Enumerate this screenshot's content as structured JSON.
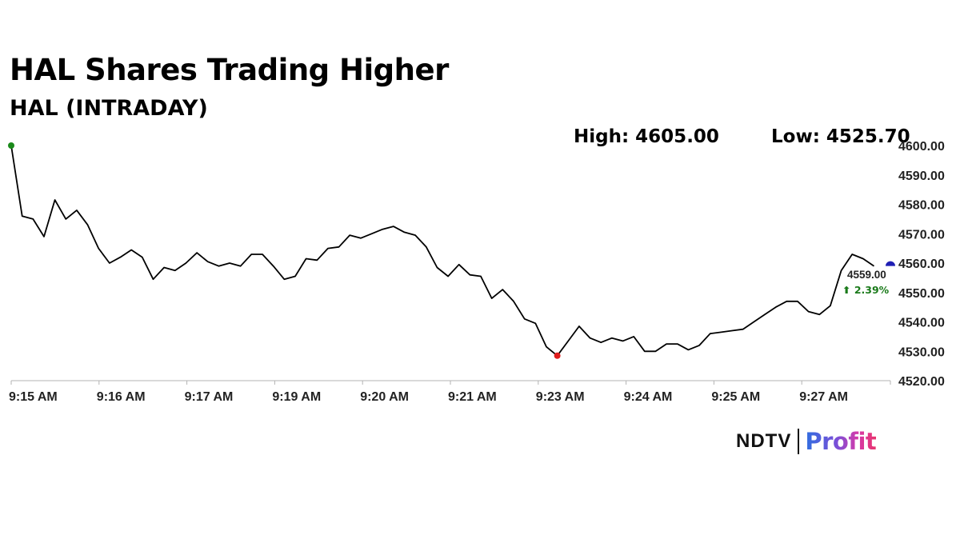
{
  "chart_data": {
    "type": "line",
    "title": "HAL Shares Trading Higher",
    "subtitle": "HAL (INTRADAY)",
    "stats": {
      "high": "High: 4605.00",
      "low": "Low: 4525.70"
    },
    "y_ticks": [
      "4600.00",
      "4590.00",
      "4580.00",
      "4570.00",
      "4560.00",
      "4550.00",
      "4540.00",
      "4530.00",
      "4520.00"
    ],
    "x_ticks": [
      "9:15 AM",
      "9:16 AM",
      "9:17 AM",
      "9:19 AM",
      "9:20 AM",
      "9:21 AM",
      "9:23 AM",
      "9:24 AM",
      "9:25 AM",
      "9:27 AM"
    ],
    "ylim": [
      4520,
      4600
    ],
    "grid": false,
    "values": [
      4600,
      4576,
      4575,
      4569,
      4581.5,
      4575,
      4578,
      4573,
      4565,
      4560,
      4562,
      4564.5,
      4562,
      4554.5,
      4558.5,
      4557.5,
      4560,
      4563.5,
      4560.5,
      4559,
      4560,
      4559,
      4563,
      4563,
      4559,
      4554.5,
      4555.5,
      4561.5,
      4561,
      4565,
      4565.5,
      4569.5,
      4568.5,
      4570,
      4571.5,
      4572.5,
      4570.5,
      4569.5,
      4565.5,
      4558.5,
      4555.5,
      4559.5,
      4556,
      4555.5,
      4548,
      4551,
      4547,
      4541,
      4539.5,
      4531.5,
      4528.5,
      4533.5,
      4538.5,
      4534.5,
      4533,
      4534.5,
      4533.5,
      4535,
      4530,
      4530,
      4532.5,
      4532.5,
      4530.5,
      4532,
      4536,
      4536.5,
      4537,
      4537.5,
      4540,
      4542.5,
      4545,
      4547,
      4547,
      4543.5,
      4542.5,
      4545.5,
      4557.5,
      4563,
      4561.5,
      4559
    ],
    "x_count": 80,
    "x_span": 80.5,
    "first_point": {
      "value": 4600,
      "color": "#1a8a1a"
    },
    "min_point": {
      "value": 4528.5,
      "color": "#e01e1e"
    },
    "last_marker": {
      "value": 4559,
      "color": "#1f1fb4"
    },
    "last_label": "4559.00",
    "change_label": "⬆ 2.39%",
    "colors": {
      "line": "#000000",
      "change": "#1a7a1a",
      "axis": "#b3b3b3"
    }
  },
  "brand": {
    "ndtv": "NDTV",
    "profit": "Profit",
    "ndtv_dot_color": "#e01e1e"
  }
}
